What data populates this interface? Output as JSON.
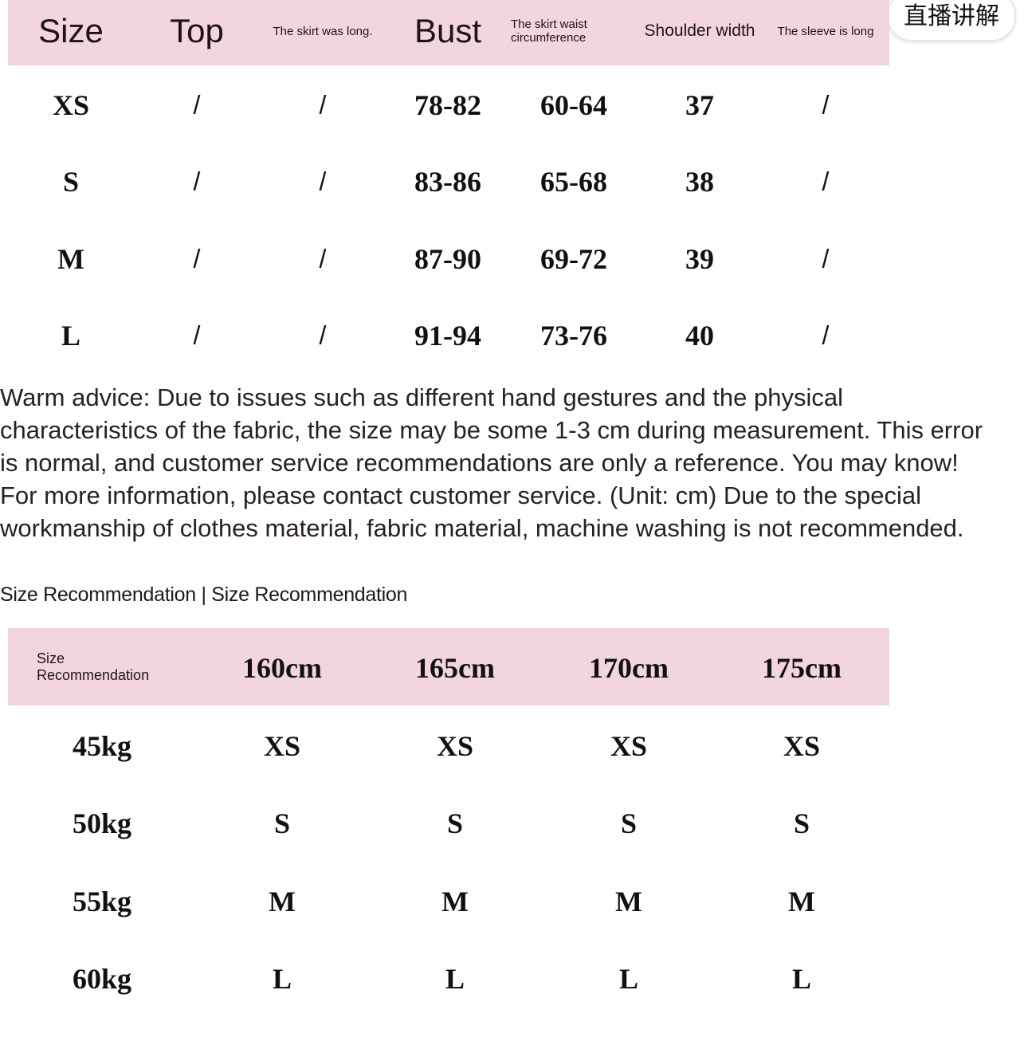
{
  "badge": {
    "text": "直播讲解"
  },
  "measurements": {
    "headers": [
      "Size",
      "Top",
      "The skirt was long.",
      "Bust",
      "The skirt waist circumference",
      "Shoulder width",
      "The sleeve is long"
    ],
    "rows": [
      [
        "XS",
        "/",
        "/",
        "78-82",
        "60-64",
        "37",
        "/"
      ],
      [
        "S",
        "/",
        "/",
        "83-86",
        "65-68",
        "38",
        "/"
      ],
      [
        "M",
        "/",
        "/",
        "87-90",
        "69-72",
        "39",
        "/"
      ],
      [
        "L",
        "/",
        "/",
        "91-94",
        "73-76",
        "40",
        "/"
      ]
    ]
  },
  "advice": "Warm advice: Due to issues such as different hand gestures and the physical characteristics of the fabric, the size may be some 1-3 cm during measurement. This error is normal, and customer service recommendations are only a reference. You may know! For more information, please contact customer service. (Unit: cm) Due to the special workmanship of clothes material, fabric material, machine washing is not recommended.",
  "recommendation_title": "Size Recommendation | Size Recommendation",
  "recommendation": {
    "headers": [
      "Size Recommendation",
      "160cm",
      "165cm",
      "170cm",
      "175cm"
    ],
    "rows": [
      [
        "45kg",
        "XS",
        "XS",
        "XS",
        "XS"
      ],
      [
        "50kg",
        "S",
        "S",
        "S",
        "S"
      ],
      [
        "55kg",
        "M",
        "M",
        "M",
        "M"
      ],
      [
        "60kg",
        "L",
        "L",
        "L",
        "L"
      ]
    ]
  },
  "colors": {
    "header_pink": "#f3d5dd"
  }
}
